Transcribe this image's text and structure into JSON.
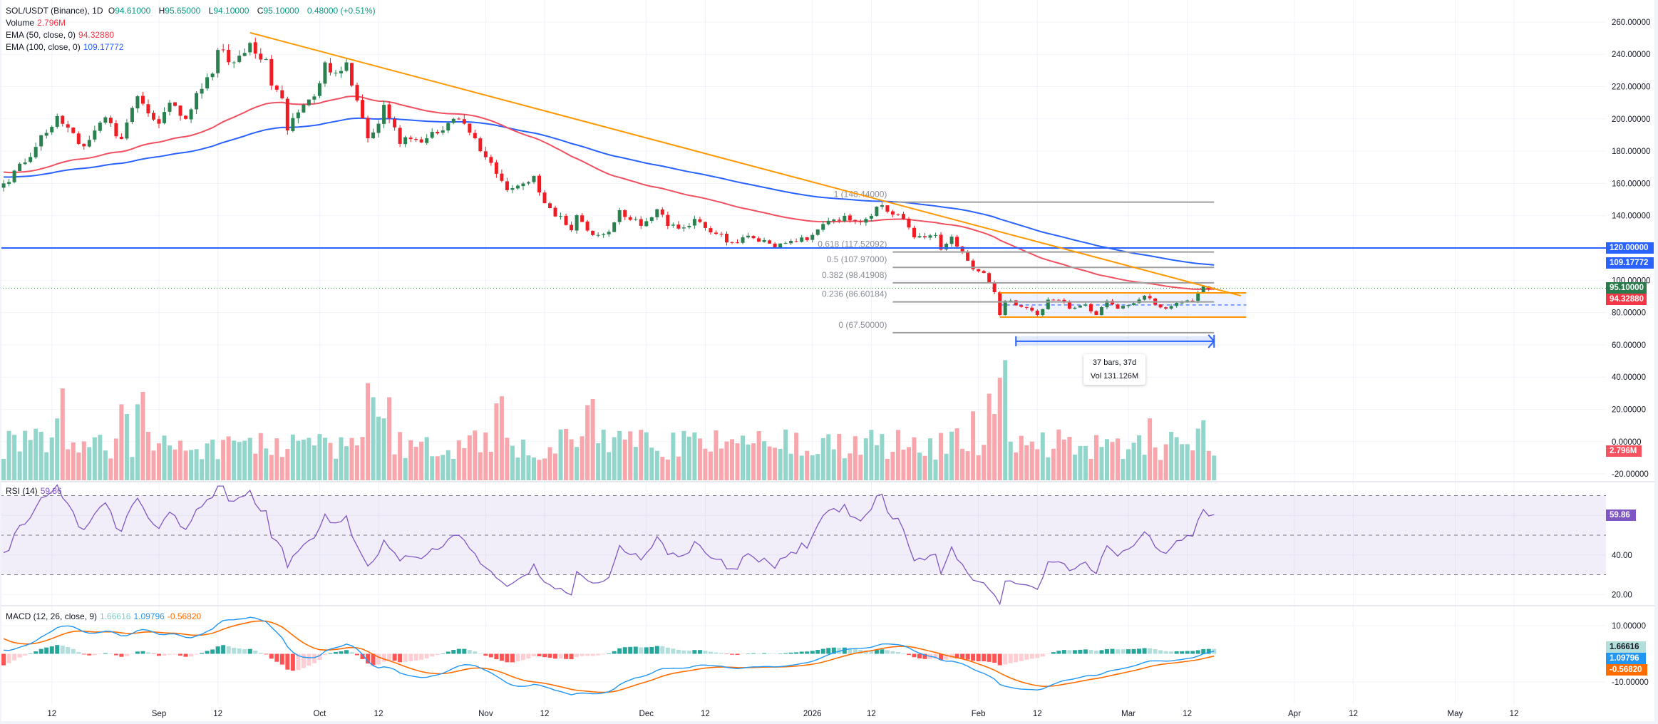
{
  "legend": {
    "symbol": "SOL/USDT (Binance), 1D",
    "open_prefix": "O",
    "open": "94.61000",
    "high_prefix": "H",
    "high": "95.65000",
    "low_prefix": "L",
    "low": "94.10000",
    "close_prefix": "C",
    "close": "95.10000",
    "change": "0.48000 (+0.51%)",
    "volume_label": "Volume",
    "volume_value": "2.796M",
    "ema50_label": "EMA (50, close, 0)",
    "ema50_value": "94.32880",
    "ema100_label": "EMA (100, close, 0)",
    "ema100_value": "109.17772",
    "rsi_label": "RSI (14)",
    "rsi_value": "59.86",
    "macd_label": "MACD (12, 26, close, 9)",
    "macd_hist": "1.66616",
    "macd_line": "1.09796",
    "macd_signal": "-0.56820"
  },
  "badges": {
    "level_120": "120.00000",
    "ema100": "109.17772",
    "last_price": "95.10000",
    "ema50": "94.32880",
    "volume": "2.796M",
    "rsi": "59.86",
    "macd_hist": "1.66616",
    "macd_line": "1.09796",
    "macd_signal": "-0.56820"
  },
  "measure_tooltip": {
    "bars": "37 bars, 37d",
    "volume": "Vol 131.126M"
  },
  "colors": {
    "up": "#2b8050",
    "down": "#ef1c24",
    "vol_up": "#92d5ca",
    "vol_down": "#f8a5ab",
    "ema50": "#f0505f",
    "ema100": "#2962ff",
    "trendline": "#ff9800",
    "rsi": "#7e57c2",
    "macd": "#2196f3",
    "signal": "#ff6d00",
    "hist_up": "#26a69a",
    "hist_up_light": "#b2dfdb",
    "hist_down": "#ff5252",
    "hist_down_light": "#ffcdd2",
    "level_line": "#2962ff",
    "fib": "#9e9e9e"
  },
  "chart_data": {
    "type": "candlestick",
    "title": "SOL/USDT (Binance), 1D",
    "x_unit": "days since 2025-09-01",
    "x_range": [
      -30,
      270
    ],
    "price_range": [
      -20,
      260
    ],
    "close_anchors": [
      [
        -29,
        160
      ],
      [
        -25,
        173
      ],
      [
        -19,
        201.7
      ],
      [
        -14,
        183
      ],
      [
        -10,
        201
      ],
      [
        -7,
        187.5
      ],
      [
        -4,
        214
      ],
      [
        0,
        197
      ],
      [
        2,
        210
      ],
      [
        5,
        200
      ],
      [
        7,
        216
      ],
      [
        10,
        228
      ],
      [
        11,
        242.7
      ],
      [
        14,
        235
      ],
      [
        17,
        247
      ],
      [
        20,
        237
      ],
      [
        21,
        220.6
      ],
      [
        23,
        212.7
      ],
      [
        24,
        192.8
      ],
      [
        26,
        204
      ],
      [
        28,
        212
      ],
      [
        30,
        222
      ],
      [
        31,
        235
      ],
      [
        33,
        228.6
      ],
      [
        35,
        235
      ],
      [
        36,
        220.6
      ],
      [
        39,
        188
      ],
      [
        41,
        197
      ],
      [
        42,
        208.7
      ],
      [
        45,
        184.5
      ],
      [
        47,
        187.5
      ],
      [
        50,
        188
      ],
      [
        52,
        191
      ],
      [
        55,
        200
      ],
      [
        57,
        197
      ],
      [
        59,
        188
      ],
      [
        63,
        166
      ],
      [
        65,
        155.8
      ],
      [
        70,
        164.6
      ],
      [
        71,
        154.4
      ],
      [
        73,
        144.7
      ],
      [
        77,
        131
      ],
      [
        78,
        140.3
      ],
      [
        81,
        128
      ],
      [
        84,
        130
      ],
      [
        86,
        143.4
      ],
      [
        90,
        133.7
      ],
      [
        92,
        139
      ],
      [
        93,
        144
      ],
      [
        95,
        133.7
      ],
      [
        98,
        132.7
      ],
      [
        100,
        138
      ],
      [
        102,
        132.4
      ],
      [
        104,
        128.8
      ],
      [
        107,
        123.5
      ],
      [
        109,
        126.6
      ],
      [
        113,
        124.9
      ],
      [
        115,
        120.4
      ],
      [
        118,
        124.4
      ],
      [
        121,
        124.9
      ],
      [
        123,
        131.5
      ],
      [
        126,
        137.7
      ],
      [
        128,
        139.9
      ],
      [
        131,
        136
      ],
      [
        133,
        139.9
      ],
      [
        134,
        145.6
      ],
      [
        135,
        146.5
      ],
      [
        136,
        142.5
      ],
      [
        139,
        138
      ],
      [
        141,
        126.6
      ],
      [
        145,
        128
      ],
      [
        146,
        119
      ],
      [
        148,
        127
      ],
      [
        150,
        118
      ],
      [
        152,
        106.8
      ],
      [
        154,
        104.5
      ],
      [
        156,
        92.6
      ],
      [
        157,
        78.5
      ],
      [
        158,
        87.3
      ],
      [
        162,
        83
      ],
      [
        164,
        78.5
      ],
      [
        166,
        88
      ],
      [
        169,
        86.8
      ],
      [
        170,
        82.4
      ],
      [
        173,
        85
      ],
      [
        175,
        78.5
      ],
      [
        177,
        87.3
      ],
      [
        179,
        82.4
      ],
      [
        181,
        84.7
      ],
      [
        184,
        90.4
      ],
      [
        186,
        85
      ],
      [
        188,
        82.4
      ],
      [
        190,
        86
      ],
      [
        193,
        87.3
      ],
      [
        194,
        92.2
      ],
      [
        195,
        96.2
      ],
      [
        196,
        94.6
      ],
      [
        197,
        95.1
      ]
    ],
    "wick_overrides": [
      [
        17,
        "high",
        253.4
      ],
      [
        39,
        "low",
        168
      ],
      [
        158,
        "low",
        67.5
      ]
    ],
    "last_candle": {
      "o": 94.61,
      "h": 95.65,
      "l": 94.1,
      "c": 95.1,
      "v": 2.796
    },
    "volume_unit": "M",
    "volume_spikes": [
      [
        -19,
        7.0
      ],
      [
        -18,
        10.4
      ],
      [
        -7,
        8.6
      ],
      [
        -6,
        7.5
      ],
      [
        -4,
        8.6
      ],
      [
        -3,
        10.0
      ],
      [
        39,
        11.0
      ],
      [
        40,
        9.4
      ],
      [
        41,
        7.2
      ],
      [
        42,
        7.0
      ],
      [
        43,
        9.4
      ],
      [
        64,
        9.5
      ],
      [
        63,
        8.7
      ],
      [
        80,
        8.5
      ],
      [
        81,
        9.2
      ],
      [
        152,
        7.8
      ],
      [
        155,
        9.8
      ],
      [
        156,
        7.5
      ],
      [
        157,
        11.6
      ],
      [
        158,
        13.6
      ],
      [
        185,
        7.0
      ],
      [
        195,
        6.8
      ]
    ],
    "ema_seed": {
      "ema50": 167,
      "ema100": 164
    },
    "rsi_seed": {
      "avg_gain": 1.4,
      "avg_loss": 2.0
    },
    "macd_seed": {
      "ema12_offset": 1.0,
      "ema26_offset": -0.3,
      "signal": 5.4
    },
    "price_axis": [
      {
        "v": 260,
        "label": "260.00000"
      },
      {
        "v": 240,
        "label": "240.00000"
      },
      {
        "v": 220,
        "label": "220.00000"
      },
      {
        "v": 200,
        "label": "200.00000"
      },
      {
        "v": 180,
        "label": "180.00000"
      },
      {
        "v": 160,
        "label": "160.00000"
      },
      {
        "v": 140,
        "label": "140.00000"
      },
      {
        "v": 100,
        "label": "100.00000"
      },
      {
        "v": 80,
        "label": "80.00000"
      },
      {
        "v": 60,
        "label": "60.00000"
      },
      {
        "v": 40,
        "label": "40.00000"
      },
      {
        "v": 20,
        "label": "20.00000"
      },
      {
        "v": 0,
        "label": "0.00000"
      },
      {
        "v": -20,
        "label": "-20.00000"
      }
    ],
    "price_grid": [
      260,
      240,
      220,
      200,
      180,
      160,
      140,
      120,
      100,
      80,
      60,
      40,
      20,
      0,
      -20
    ],
    "rsi_axis": [
      {
        "v": 40,
        "label": "40.00"
      },
      {
        "v": 20,
        "label": "20.00"
      }
    ],
    "rsi_grid": [
      60,
      40,
      20
    ],
    "rsi_bands": [
      70,
      50,
      30
    ],
    "macd_axis": [
      {
        "v": 10,
        "label": "10.00000"
      },
      {
        "v": -10,
        "label": "-10.00000"
      }
    ],
    "macd_grid": [
      10,
      -10
    ],
    "time_axis": [
      {
        "t": -20,
        "label": "12"
      },
      {
        "t": 0,
        "label": "Sep"
      },
      {
        "t": 11,
        "label": "12"
      },
      {
        "t": 30,
        "label": "Oct"
      },
      {
        "t": 41,
        "label": "12"
      },
      {
        "t": 61,
        "label": "Nov"
      },
      {
        "t": 72,
        "label": "12"
      },
      {
        "t": 91,
        "label": "Dec"
      },
      {
        "t": 102,
        "label": "12"
      },
      {
        "t": 122,
        "label": "2026"
      },
      {
        "t": 133,
        "label": "12"
      },
      {
        "t": 153,
        "label": "Feb"
      },
      {
        "t": 164,
        "label": "12"
      },
      {
        "t": 181,
        "label": "Mar"
      },
      {
        "t": 192,
        "label": "12"
      },
      {
        "t": 212,
        "label": "Apr"
      },
      {
        "t": 223,
        "label": "12"
      },
      {
        "t": 242,
        "label": "May"
      },
      {
        "t": 253,
        "label": "12"
      }
    ],
    "horizontal_level": 120,
    "trendline": {
      "from": [
        17,
        253.4
      ],
      "to": [
        202,
        90.4
      ]
    },
    "fib_retracement": {
      "t_from": 137,
      "t_to": 197,
      "levels": [
        {
          "price": 148.44,
          "label": "1 (148.44000)"
        },
        {
          "price": 117.52092,
          "label": "0.618 (117.52092)"
        },
        {
          "price": 107.97,
          "label": "0.5 (107.97000)"
        },
        {
          "price": 98.41908,
          "label": "0.382 (98.41908)"
        },
        {
          "price": 86.60184,
          "label": "0.236 (86.60184)"
        },
        {
          "price": 67.5,
          "label": "0 (67.50000)"
        }
      ]
    },
    "range_box": {
      "t_from": 157,
      "t_to": 203,
      "top": 92.2,
      "bottom": 77.2,
      "mid": 84.7
    },
    "date_range": {
      "t_from": 160,
      "t_to": 197,
      "price": 62.2,
      "band_top": 65.3,
      "band_bottom": 59.5
    }
  }
}
